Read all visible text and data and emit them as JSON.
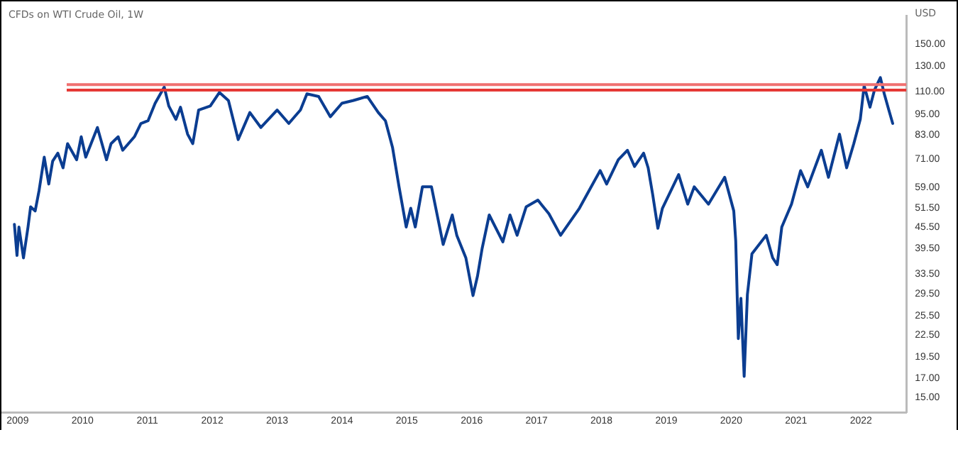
{
  "chart_data": {
    "type": "line",
    "title": "CFDs on WTI Crude Oil, 1W",
    "ylabel": "USD",
    "log": "y",
    "grid": false,
    "legend": false,
    "marker": "none",
    "xlim": [
      2008.75,
      2022.7
    ],
    "xticks": [
      2009,
      2010,
      2011,
      2012,
      2013,
      2014,
      2015,
      2016,
      2017,
      2018,
      2019,
      2020,
      2021,
      2022
    ],
    "ylim": [
      13.6,
      180
    ],
    "yticks": [
      {
        "value": 150,
        "label": "150.00"
      },
      {
        "value": 130,
        "label": "130.00"
      },
      {
        "value": 110,
        "label": "110.00"
      },
      {
        "value": 95,
        "label": "95.00"
      },
      {
        "value": 83,
        "label": "83.00"
      },
      {
        "value": 71,
        "label": "71.00"
      },
      {
        "value": 59,
        "label": "59.00"
      },
      {
        "value": 51.5,
        "label": "51.50"
      },
      {
        "value": 45.5,
        "label": "45.50"
      },
      {
        "value": 39.5,
        "label": "39.50"
      },
      {
        "value": 33.5,
        "label": "33.50"
      },
      {
        "value": 29.5,
        "label": "29.50"
      },
      {
        "value": 25.5,
        "label": "25.50"
      },
      {
        "value": 22.5,
        "label": "22.50"
      },
      {
        "value": 19.5,
        "label": "19.50"
      },
      {
        "value": 17,
        "label": "17.00"
      },
      {
        "value": 15,
        "label": "15.00"
      }
    ],
    "ref_lines": [
      {
        "axis": "y",
        "value": 115,
        "color": "#f07070"
      },
      {
        "axis": "y",
        "value": 111,
        "color": "#e53935"
      }
    ],
    "series": [
      {
        "color": "#0b3d91",
        "x": [
          2008.95,
          2008.99,
          2009.02,
          2009.09,
          2009.16,
          2009.2,
          2009.27,
          2009.33,
          2009.41,
          2009.48,
          2009.54,
          2009.62,
          2009.7,
          2009.77,
          2009.91,
          2009.98,
          2010.05,
          2010.23,
          2010.37,
          2010.44,
          2010.55,
          2010.62,
          2010.8,
          2010.9,
          2011.01,
          2011.12,
          2011.26,
          2011.33,
          2011.44,
          2011.51,
          2011.62,
          2011.7,
          2011.79,
          2011.97,
          2012.11,
          2012.25,
          2012.4,
          2012.58,
          2012.75,
          2013.0,
          2013.18,
          2013.36,
          2013.46,
          2013.64,
          2013.82,
          2014.0,
          2014.17,
          2014.39,
          2014.56,
          2014.67,
          2014.78,
          2014.88,
          2014.99,
          2015.06,
          2015.13,
          2015.24,
          2015.38,
          2015.56,
          2015.7,
          2015.77,
          2015.91,
          2016.02,
          2016.09,
          2016.16,
          2016.27,
          2016.48,
          2016.59,
          2016.7,
          2016.84,
          2017.02,
          2017.19,
          2017.37,
          2017.66,
          2017.83,
          2017.98,
          2018.08,
          2018.26,
          2018.4,
          2018.51,
          2018.65,
          2018.72,
          2018.79,
          2018.87,
          2018.94,
          2019.19,
          2019.33,
          2019.43,
          2019.65,
          2019.9,
          2020.04,
          2020.07,
          2020.11,
          2020.15,
          2020.2,
          2020.25,
          2020.32,
          2020.54,
          2020.64,
          2020.71,
          2020.78,
          2020.93,
          2021.07,
          2021.18,
          2021.39,
          2021.5,
          2021.67,
          2021.78,
          2021.89,
          2021.99,
          2022.05,
          2022.14,
          2022.21,
          2022.3,
          2022.36,
          2022.43,
          2022.49
        ],
        "values": [
          46.3,
          37.8,
          45.5,
          37.2,
          45.5,
          51.9,
          50.5,
          57.6,
          71.7,
          60.2,
          69.9,
          73.6,
          66.9,
          78.3,
          70.5,
          81.9,
          71.7,
          87,
          70.5,
          78.3,
          81.9,
          75,
          81.9,
          89.3,
          90.9,
          101.9,
          113.2,
          100.1,
          91.7,
          99.3,
          83.3,
          78.3,
          97.5,
          100.1,
          109.3,
          103.7,
          80.4,
          95.9,
          87,
          97.5,
          89.3,
          97.5,
          108.3,
          106.5,
          93.3,
          101.9,
          103.7,
          106.5,
          95.9,
          90.9,
          76.3,
          59.1,
          45.5,
          51.4,
          45.5,
          59.1,
          59.1,
          40.6,
          49.2,
          43.1,
          37.2,
          29.1,
          33.1,
          39.5,
          49.2,
          41.3,
          49.2,
          43.1,
          51.9,
          54.2,
          49.6,
          43.1,
          51.4,
          58.6,
          65.7,
          60.2,
          70.5,
          75,
          67.5,
          73.6,
          66.9,
          56.2,
          45.1,
          51.4,
          64,
          52.8,
          59.1,
          52.8,
          62.9,
          50.5,
          41.6,
          22,
          28.6,
          17.2,
          29.3,
          38.2,
          43.1,
          37.2,
          35.6,
          45.5,
          52.8,
          65.7,
          59.1,
          75,
          62.9,
          83.3,
          66.9,
          78.3,
          91.7,
          114.2,
          99.3,
          111.2,
          120.4,
          108.3,
          97.5,
          89.3
        ]
      }
    ]
  }
}
